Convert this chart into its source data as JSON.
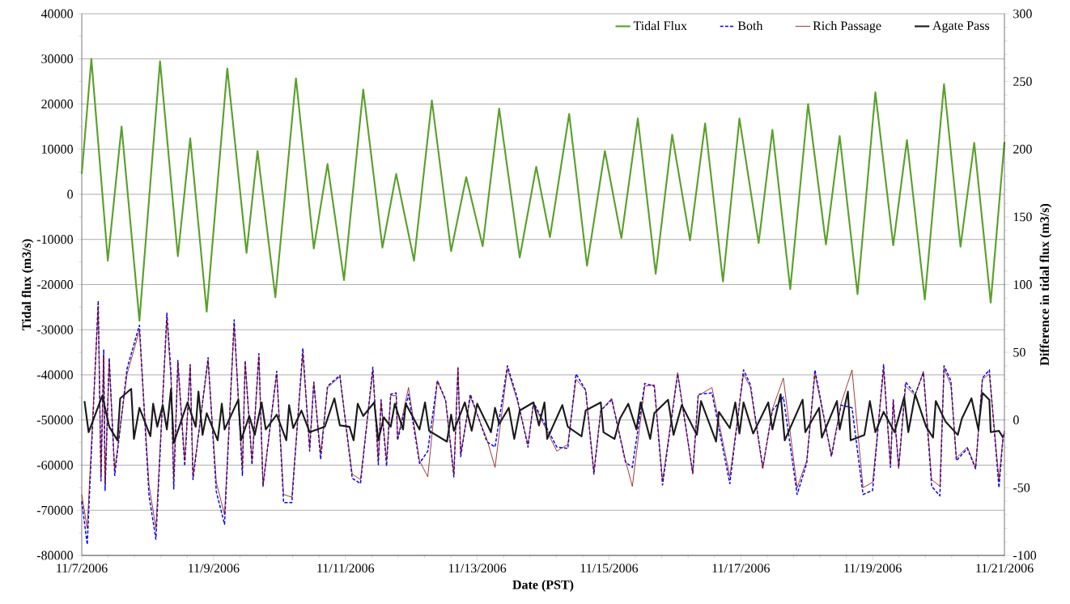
{
  "chart_data": {
    "type": "line",
    "xlabel": "Date (PST)",
    "ylabel": "Tidal flux (m3/s)",
    "y2label": "Difference in tidal flux (m3/s)",
    "xlim": [
      "2006-11-07",
      "2006-11-21"
    ],
    "xticks": [
      {
        "value": "2006-11-07",
        "label": "11/7/2006"
      },
      {
        "value": "2006-11-09",
        "label": "11/9/2006"
      },
      {
        "value": "2006-11-11",
        "label": "11/11/2006"
      },
      {
        "value": "2006-11-13",
        "label": "11/13/2006"
      },
      {
        "value": "2006-11-15",
        "label": "11/15/2006"
      },
      {
        "value": "2006-11-17",
        "label": "11/17/2006"
      },
      {
        "value": "2006-11-19",
        "label": "11/19/2006"
      },
      {
        "value": "2006-11-21",
        "label": "11/21/2006"
      }
    ],
    "ylim": [
      -80000,
      40000
    ],
    "yticks": [
      -80000,
      -70000,
      -60000,
      -50000,
      -40000,
      -30000,
      -20000,
      -10000,
      0,
      10000,
      20000,
      30000,
      40000
    ],
    "y2lim": [
      -100,
      300
    ],
    "y2ticks": [
      -100,
      -50,
      0,
      50,
      100,
      150,
      200,
      250,
      300
    ],
    "grid": "y",
    "legend": "top right",
    "marker": "none",
    "series": [
      {
        "name": "Tidal Flux",
        "color": "#5aa02c",
        "line_style": "solid",
        "x": [
          "2006-11-07T00:00",
          "2006-11-07T03:30",
          "2006-11-07T09:30",
          "2006-11-07T14:30",
          "2006-11-07T21:00",
          "2006-11-08T04:30",
          "2006-11-08T11:00",
          "2006-11-08T15:30",
          "2006-11-08T21:30",
          "2006-11-09T05:00",
          "2006-11-09T12:00",
          "2006-11-09T16:00",
          "2006-11-09T22:30",
          "2006-11-10T06:00",
          "2006-11-10T12:30",
          "2006-11-10T17:30",
          "2006-11-10T23:30",
          "2006-11-11T06:30",
          "2006-11-11T13:30",
          "2006-11-11T18:30",
          "2006-11-12T01:00",
          "2006-11-12T07:30",
          "2006-11-12T14:30",
          "2006-11-12T20:00",
          "2006-11-13T02:00",
          "2006-11-13T08:00",
          "2006-11-13T15:30",
          "2006-11-13T21:30",
          "2006-11-14T02:30",
          "2006-11-14T09:30",
          "2006-11-14T16:00",
          "2006-11-14T22:30",
          "2006-11-15T04:30",
          "2006-11-15T10:30",
          "2006-11-15T17:00",
          "2006-11-15T23:00",
          "2006-11-16T05:30",
          "2006-11-16T11:00",
          "2006-11-16T17:30",
          "2006-11-16T23:30",
          "2006-11-17T06:30",
          "2006-11-17T11:30",
          "2006-11-17T18:00",
          "2006-11-18T00:30",
          "2006-11-18T07:00",
          "2006-11-18T12:00",
          "2006-11-18T18:30",
          "2006-11-19T01:00",
          "2006-11-19T07:30",
          "2006-11-19T12:30",
          "2006-11-19T19:00",
          "2006-11-20T02:00",
          "2006-11-20T08:00",
          "2006-11-20T13:00",
          "2006-11-20T19:00",
          "2006-11-21T00:00"
        ],
        "values": [
          4500,
          30000,
          -14700,
          15000,
          -28000,
          29500,
          -13700,
          12400,
          -26000,
          27900,
          -13000,
          9600,
          -22800,
          25700,
          -12000,
          6700,
          -19000,
          23200,
          -11800,
          4500,
          -14700,
          20800,
          -12600,
          3800,
          -11500,
          19000,
          -14000,
          6100,
          -9500,
          17800,
          -15800,
          9600,
          -9700,
          16800,
          -17600,
          13200,
          -10200,
          15700,
          -19300,
          16800,
          -10800,
          14300,
          -21000,
          20000,
          -11100,
          12900,
          -22100,
          22600,
          -11300,
          12000,
          -23300,
          24400,
          -11600,
          11400,
          -24000,
          11600
        ]
      },
      {
        "name": "Both",
        "color": "#0000ff",
        "line_style": "dashed",
        "axis": "y2",
        "x": [
          "2006-11-07T00:00",
          "2006-11-07T02:00",
          "2006-11-07T06:00",
          "2006-11-07T07:00",
          "2006-11-07T08:00",
          "2006-11-07T08:30",
          "2006-11-07T10:00",
          "2006-11-07T12:00",
          "2006-11-07T16:30",
          "2006-11-07T21:00",
          "2006-11-08T00:30",
          "2006-11-08T03:00",
          "2006-11-08T07:00",
          "2006-11-08T08:30",
          "2006-11-08T09:30",
          "2006-11-08T11:00",
          "2006-11-08T13:30",
          "2006-11-08T15:30",
          "2006-11-08T16:30",
          "2006-11-08T22:00",
          "2006-11-09T01:00",
          "2006-11-09T04:00",
          "2006-11-09T07:30",
          "2006-11-09T10:30",
          "2006-11-09T11:30",
          "2006-11-09T14:00",
          "2006-11-09T16:30",
          "2006-11-09T18:00",
          "2006-11-09T23:00",
          "2006-11-10T01:30",
          "2006-11-10T04:30",
          "2006-11-10T08:30",
          "2006-11-10T11:00",
          "2006-11-10T12:30",
          "2006-11-10T15:00",
          "2006-11-10T17:30",
          "2006-11-10T22:00",
          "2006-11-11T02:30",
          "2006-11-11T05:30",
          "2006-11-11T10:00",
          "2006-11-11T12:00",
          "2006-11-11T13:00",
          "2006-11-11T15:00",
          "2006-11-11T16:30",
          "2006-11-11T18:30",
          "2006-11-11T19:00",
          "2006-11-11T23:00",
          "2006-11-12T03:00",
          "2006-11-12T06:00",
          "2006-11-12T09:30",
          "2006-11-12T12:30",
          "2006-11-12T15:30",
          "2006-11-12T17:00",
          "2006-11-12T18:00",
          "2006-11-12T21:30",
          "2006-11-13T03:30",
          "2006-11-13T06:30",
          "2006-11-13T11:00",
          "2006-11-13T14:30",
          "2006-11-13T18:30",
          "2006-11-13T20:30",
          "2006-11-14T05:00",
          "2006-11-14T09:00",
          "2006-11-14T12:00",
          "2006-11-14T15:30",
          "2006-11-14T18:30",
          "2006-11-14T21:00",
          "2006-11-15T01:00",
          "2006-11-15T06:00",
          "2006-11-15T08:30",
          "2006-11-15T13:00",
          "2006-11-15T16:30",
          "2006-11-15T19:30",
          "2006-11-16T01:00",
          "2006-11-16T06:30",
          "2006-11-16T08:30",
          "2006-11-16T13:30",
          "2006-11-16T20:00",
          "2006-11-17T01:00",
          "2006-11-17T03:30",
          "2006-11-17T08:00",
          "2006-11-17T11:30",
          "2006-11-17T15:30",
          "2006-11-17T20:30",
          "2006-11-18T00:00",
          "2006-11-18T03:00",
          "2006-11-18T09:00",
          "2006-11-18T12:30",
          "2006-11-18T16:30",
          "2006-11-18T20:30",
          "2006-11-19T00:00",
          "2006-11-19T04:00",
          "2006-11-19T06:30",
          "2006-11-19T07:30",
          "2006-11-19T09:30",
          "2006-11-19T12:00",
          "2006-11-19T15:30",
          "2006-11-19T18:30",
          "2006-11-19T21:30",
          "2006-11-20T00:30",
          "2006-11-20T02:00",
          "2006-11-20T04:30",
          "2006-11-20T06:30",
          "2006-11-20T10:30",
          "2006-11-20T13:30",
          "2006-11-20T16:00",
          "2006-11-20T18:30",
          "2006-11-20T22:00",
          "2006-11-20T23:30",
          "2006-11-21T00:00"
        ],
        "values": [
          -60,
          -92,
          88,
          -45,
          52,
          -52,
          46,
          -41,
          38,
          70,
          -56,
          -88,
          79,
          35,
          -51,
          44,
          -34,
          41,
          -44,
          46,
          -53,
          -77,
          74,
          -41,
          44,
          -33,
          49,
          -49,
          36,
          -61,
          -61,
          53,
          -23,
          28,
          -29,
          25,
          33,
          -43,
          -47,
          39,
          -33,
          15,
          -34,
          19,
          20,
          -15,
          19,
          -32,
          -23,
          29,
          15,
          -42,
          38,
          -27,
          19,
          -16,
          -20,
          40,
          17,
          -20,
          13,
          -20,
          -21,
          34,
          22,
          -40,
          7,
          15,
          -31,
          -35,
          27,
          25,
          -48,
          34,
          -39,
          19,
          20,
          -47,
          37,
          26,
          -35,
          7,
          17,
          -55,
          -32,
          37,
          -27,
          11,
          9,
          -55,
          -52,
          41,
          -35,
          15,
          -35,
          28,
          19,
          35,
          -49,
          -56,
          40,
          29,
          -30,
          -21,
          -36,
          31,
          37,
          -50,
          -13,
          -10
        ]
      },
      {
        "name": "Rich Passage",
        "color": "#8b0a0a",
        "line_style": "solid",
        "axis": "y2",
        "x": [
          "2006-11-07T00:00",
          "2006-11-07T02:00",
          "2006-11-07T06:00",
          "2006-11-07T07:00",
          "2006-11-07T08:00",
          "2006-11-07T08:30",
          "2006-11-07T10:00",
          "2006-11-07T12:00",
          "2006-11-07T16:30",
          "2006-11-07T21:00",
          "2006-11-08T00:30",
          "2006-11-08T03:00",
          "2006-11-08T07:00",
          "2006-11-08T08:30",
          "2006-11-08T09:30",
          "2006-11-08T11:00",
          "2006-11-08T13:30",
          "2006-11-08T15:30",
          "2006-11-08T16:30",
          "2006-11-08T22:00",
          "2006-11-09T01:00",
          "2006-11-09T04:00",
          "2006-11-09T07:30",
          "2006-11-09T10:30",
          "2006-11-09T11:30",
          "2006-11-09T14:00",
          "2006-11-09T16:30",
          "2006-11-09T18:00",
          "2006-11-09T23:00",
          "2006-11-10T01:30",
          "2006-11-10T04:30",
          "2006-11-10T08:30",
          "2006-11-10T11:00",
          "2006-11-10T12:30",
          "2006-11-10T15:00",
          "2006-11-10T17:30",
          "2006-11-10T22:00",
          "2006-11-11T02:30",
          "2006-11-11T05:30",
          "2006-11-11T10:00",
          "2006-11-11T12:00",
          "2006-11-11T13:00",
          "2006-11-11T15:00",
          "2006-11-11T16:30",
          "2006-11-11T18:30",
          "2006-11-11T19:00",
          "2006-11-11T23:00",
          "2006-11-12T03:00",
          "2006-11-12T06:00",
          "2006-11-12T09:30",
          "2006-11-12T12:30",
          "2006-11-12T15:30",
          "2006-11-12T17:00",
          "2006-11-12T18:00",
          "2006-11-12T21:30",
          "2006-11-13T03:30",
          "2006-11-13T06:30",
          "2006-11-13T11:00",
          "2006-11-13T14:30",
          "2006-11-13T18:30",
          "2006-11-13T20:30",
          "2006-11-14T05:00",
          "2006-11-14T09:00",
          "2006-11-14T12:00",
          "2006-11-14T15:30",
          "2006-11-14T18:30",
          "2006-11-14T21:00",
          "2006-11-15T01:00",
          "2006-11-15T06:00",
          "2006-11-15T08:30",
          "2006-11-15T13:00",
          "2006-11-15T16:30",
          "2006-11-15T19:30",
          "2006-11-16T01:00",
          "2006-11-16T06:30",
          "2006-11-16T08:30",
          "2006-11-16T13:30",
          "2006-11-16T20:00",
          "2006-11-17T01:00",
          "2006-11-17T03:30",
          "2006-11-17T08:00",
          "2006-11-17T11:30",
          "2006-11-17T15:30",
          "2006-11-17T20:30",
          "2006-11-18T00:00",
          "2006-11-18T03:00",
          "2006-11-18T09:00",
          "2006-11-18T12:30",
          "2006-11-18T16:30",
          "2006-11-18T20:30",
          "2006-11-19T00:00",
          "2006-11-19T04:00",
          "2006-11-19T06:30",
          "2006-11-19T07:30",
          "2006-11-19T09:30",
          "2006-11-19T12:00",
          "2006-11-19T15:30",
          "2006-11-19T18:30",
          "2006-11-19T21:30",
          "2006-11-20T00:30",
          "2006-11-20T02:00",
          "2006-11-20T04:30",
          "2006-11-20T06:30",
          "2006-11-20T10:30",
          "2006-11-20T13:30",
          "2006-11-20T16:00",
          "2006-11-20T18:30",
          "2006-11-20T22:00",
          "2006-11-20T23:30",
          "2006-11-21T00:00"
        ],
        "values": [
          -55,
          -80,
          84,
          -40,
          48,
          -46,
          44,
          -37,
          34,
          66,
          -48,
          -80,
          75,
          30,
          -44,
          42,
          -30,
          40,
          -42,
          44,
          -46,
          -70,
          70,
          -36,
          42,
          -30,
          47,
          -48,
          34,
          -55,
          -57,
          49,
          -20,
          28,
          -25,
          24,
          32,
          -40,
          -44,
          36,
          -30,
          14,
          -30,
          18,
          18,
          -14,
          24,
          -30,
          -42,
          29,
          14,
          -40,
          39,
          -25,
          17,
          -14,
          -35,
          38,
          15,
          -18,
          12,
          -23,
          -18,
          30,
          22,
          -38,
          7,
          16,
          -30,
          -49,
          25,
          26,
          -45,
          35,
          -40,
          18,
          24,
          -42,
          34,
          24,
          -36,
          8,
          31,
          -50,
          -30,
          34,
          -26,
          12,
          37,
          -50,
          -46,
          37,
          -33,
          14,
          -36,
          25,
          18,
          36,
          -44,
          -49,
          38,
          26,
          -28,
          -20,
          -35,
          30,
          34,
          -44,
          -12,
          -8
        ]
      },
      {
        "name": "Agate Pass",
        "color": "#1a1a1a",
        "line_style": "solid",
        "axis": "y2",
        "x": [
          "2006-11-07T01:00",
          "2006-11-07T02:30",
          "2006-11-07T07:30",
          "2006-11-07T10:00",
          "2006-11-07T13:00",
          "2006-11-07T14:00",
          "2006-11-07T18:00",
          "2006-11-07T19:00",
          "2006-11-07T21:00",
          "2006-11-08T01:00",
          "2006-11-08T02:00",
          "2006-11-08T03:30",
          "2006-11-08T05:30",
          "2006-11-08T07:00",
          "2006-11-08T08:30",
          "2006-11-08T09:30",
          "2006-11-08T14:30",
          "2006-11-08T17:30",
          "2006-11-08T18:30",
          "2006-11-08T20:00",
          "2006-11-08T21:30",
          "2006-11-09T01:30",
          "2006-11-09T03:00",
          "2006-11-09T04:00",
          "2006-11-09T09:00",
          "2006-11-09T10:00",
          "2006-11-09T13:00",
          "2006-11-09T15:00",
          "2006-11-09T17:30",
          "2006-11-09T19:00",
          "2006-11-09T23:00",
          "2006-11-10T02:30",
          "2006-11-10T03:30",
          "2006-11-10T05:00",
          "2006-11-10T08:00",
          "2006-11-10T11:00",
          "2006-11-10T16:30",
          "2006-11-10T20:00",
          "2006-11-10T22:00",
          "2006-11-11T01:30",
          "2006-11-11T03:00",
          "2006-11-11T04:30",
          "2006-11-11T06:30",
          "2006-11-11T10:30",
          "2006-11-11T12:00",
          "2006-11-11T14:00",
          "2006-11-11T16:30",
          "2006-11-11T18:00",
          "2006-11-11T21:00",
          "2006-11-11T22:00",
          "2006-11-12T03:00",
          "2006-11-12T05:00",
          "2006-11-12T06:30",
          "2006-11-12T13:00",
          "2006-11-12T14:30",
          "2006-11-12T15:30",
          "2006-11-12T19:30",
          "2006-11-12T22:00",
          "2006-11-13T00:00",
          "2006-11-13T05:00",
          "2006-11-13T06:30",
          "2006-11-13T08:00",
          "2006-11-13T11:30",
          "2006-11-13T13:30",
          "2006-11-13T15:30",
          "2006-11-13T20:30",
          "2006-11-13T22:30",
          "2006-11-14T00:30",
          "2006-11-14T01:30",
          "2006-11-14T07:00",
          "2006-11-14T09:00",
          "2006-11-14T14:00",
          "2006-11-14T15:30",
          "2006-11-14T21:00",
          "2006-11-14T22:00",
          "2006-11-15T02:00",
          "2006-11-15T04:00",
          "2006-11-15T07:00",
          "2006-11-15T10:00",
          "2006-11-15T11:30",
          "2006-11-15T15:00",
          "2006-11-15T16:30",
          "2006-11-15T21:30",
          "2006-11-15T23:30",
          "2006-11-16T02:30",
          "2006-11-16T08:00",
          "2006-11-16T09:30",
          "2006-11-16T15:00",
          "2006-11-16T16:00",
          "2006-11-16T20:00",
          "2006-11-16T22:00",
          "2006-11-16T23:30",
          "2006-11-17T01:00",
          "2006-11-17T04:30",
          "2006-11-17T10:00",
          "2006-11-17T11:30",
          "2006-11-17T14:30",
          "2006-11-17T16:00",
          "2006-11-17T22:30",
          "2006-11-17T23:30",
          "2006-11-18T04:30",
          "2006-11-18T05:30",
          "2006-11-18T11:00",
          "2006-11-18T12:00",
          "2006-11-18T15:00",
          "2006-11-18T16:00",
          "2006-11-18T21:00",
          "2006-11-18T23:00",
          "2006-11-19T01:00",
          "2006-11-19T04:00",
          "2006-11-19T08:00",
          "2006-11-19T11:30",
          "2006-11-19T13:00",
          "2006-11-19T15:30",
          "2006-11-19T19:30",
          "2006-11-19T22:00",
          "2006-11-19T23:00",
          "2006-11-20T02:30",
          "2006-11-20T07:00",
          "2006-11-20T08:30",
          "2006-11-20T12:00",
          "2006-11-20T14:30",
          "2006-11-20T16:00",
          "2006-11-20T18:30",
          "2006-11-20T19:00",
          "2006-11-20T22:00",
          "2006-11-20T23:30"
        ],
        "values": [
          14,
          -9,
          18,
          -5,
          -15,
          16,
          23,
          -14,
          9,
          -12,
          12,
          -5,
          11,
          -7,
          23,
          -17,
          13,
          -5,
          21,
          -11,
          5,
          -15,
          12,
          -7,
          15,
          -15,
          3,
          -11,
          13,
          -7,
          4,
          -15,
          11,
          -6,
          7,
          -9,
          -5,
          16,
          -4,
          -5,
          -15,
          12,
          3,
          13,
          -15,
          2,
          -5,
          12,
          -7,
          12,
          -7,
          13,
          -8,
          -16,
          4,
          -8,
          13,
          -8,
          12,
          -9,
          9,
          -3,
          9,
          -14,
          7,
          13,
          -4,
          13,
          -14,
          11,
          -5,
          -12,
          7,
          13,
          -9,
          -14,
          1,
          12,
          -7,
          13,
          -14,
          5,
          15,
          -11,
          11,
          -11,
          14,
          -16,
          6,
          -6,
          13,
          -10,
          13,
          -10,
          13,
          -7,
          19,
          -15,
          15,
          -9,
          9,
          -13,
          14,
          -7,
          21,
          -15,
          -11,
          14,
          -9,
          6,
          -9,
          17,
          -9,
          19,
          -5,
          -13,
          14,
          -1,
          -11,
          1,
          16,
          -7,
          20,
          15,
          -9,
          -8,
          -13
        ]
      }
    ]
  }
}
